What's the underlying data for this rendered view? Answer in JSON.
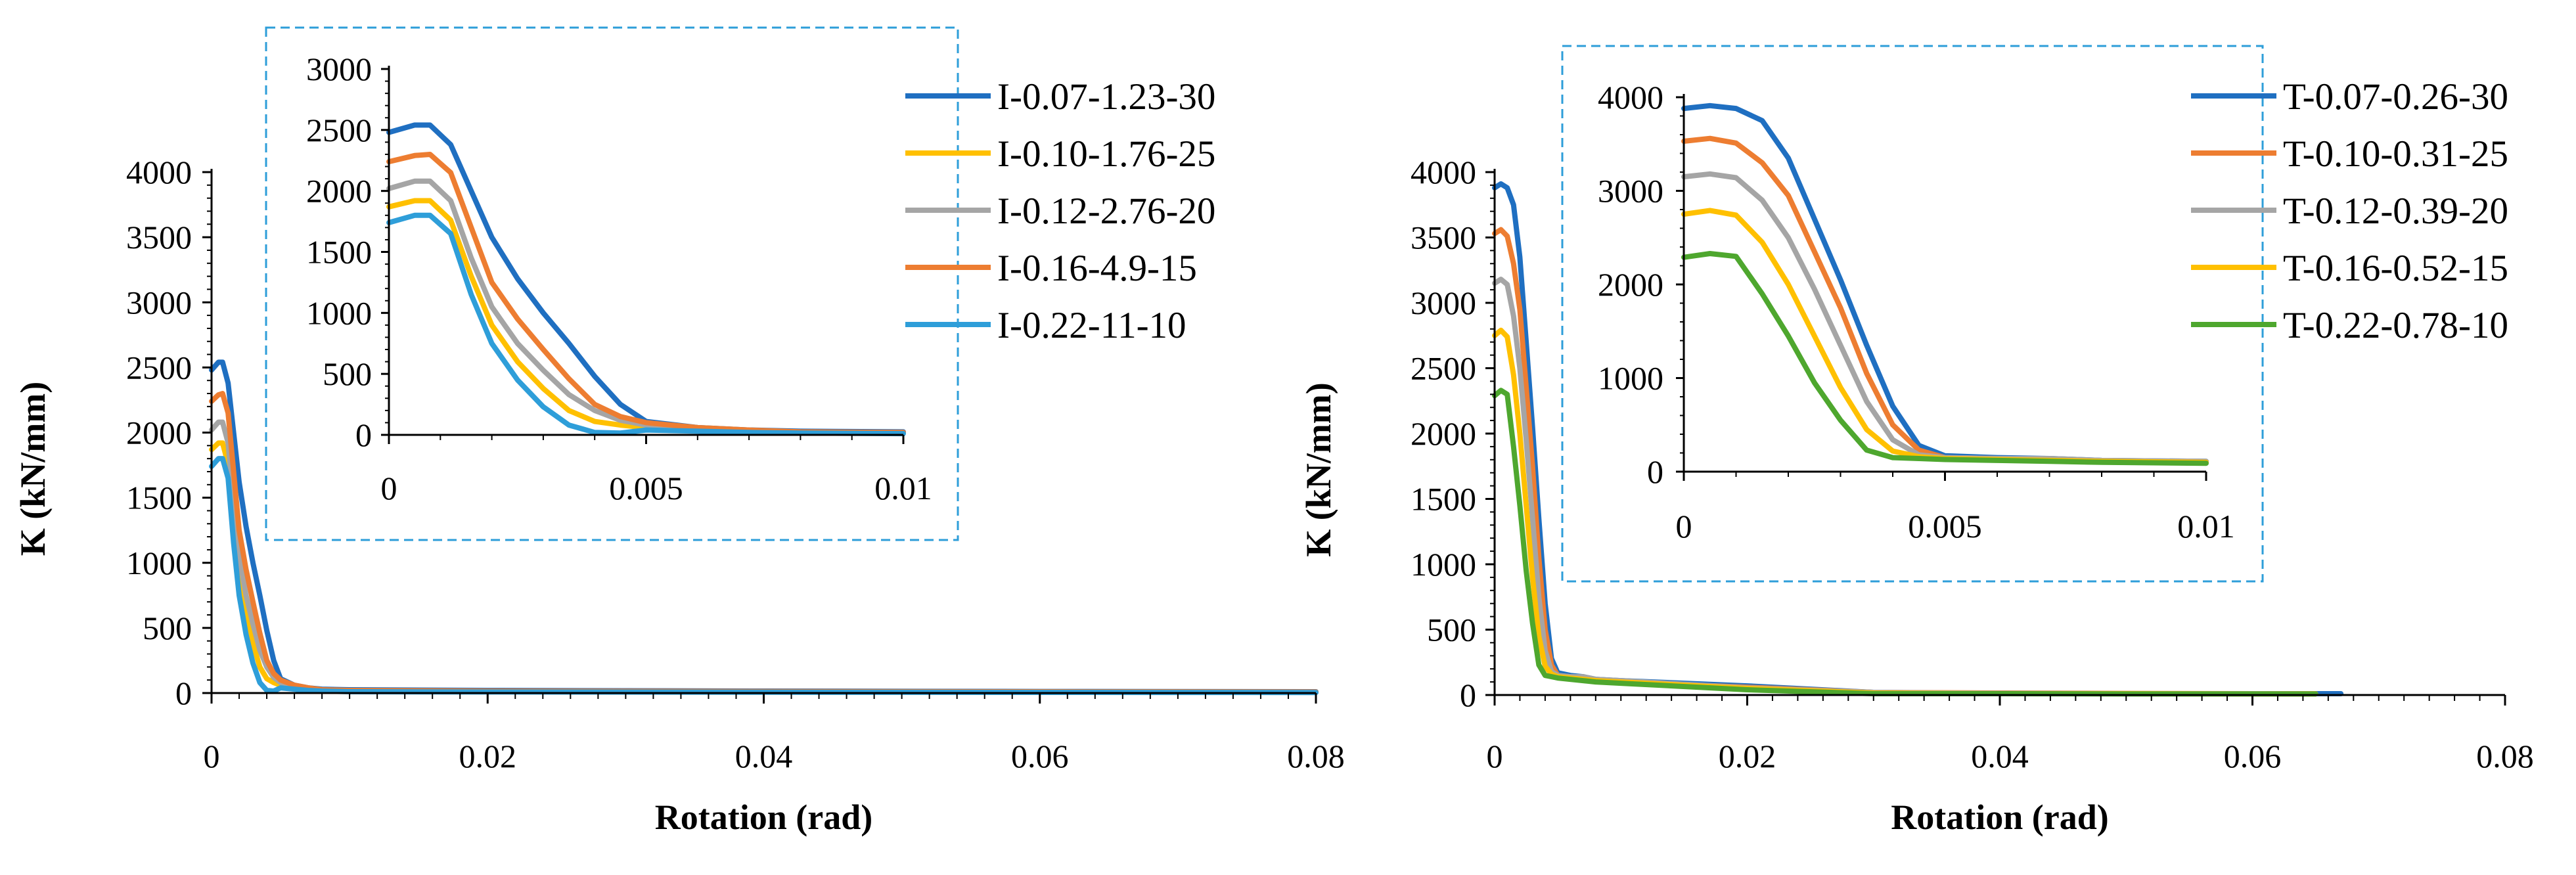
{
  "chart_data": [
    {
      "type": "line",
      "panel": "left",
      "title": "",
      "xlabel": "Rotation (rad)",
      "ylabel": "K (kN/mm)",
      "xlim": [
        0,
        0.08
      ],
      "ylim": [
        0,
        4000
      ],
      "xticks": [
        0,
        0.02,
        0.04,
        0.06,
        0.08
      ],
      "xtick_labels": [
        "0",
        "0.02",
        "0.04",
        "0.06",
        "0.08"
      ],
      "yticks": [
        0,
        500,
        1000,
        1500,
        2000,
        2500,
        3000,
        3500,
        4000
      ],
      "ytick_labels": [
        "0",
        "500",
        "1000",
        "1500",
        "2000",
        "2500",
        "3000",
        "3500",
        "4000"
      ],
      "legend_position": "top-right",
      "series": [
        {
          "name": "I-0.07-1.23-30",
          "color": "#1f6fc1",
          "x": [
            0,
            0.0005,
            0.0008,
            0.0012,
            0.0016,
            0.002,
            0.0025,
            0.003,
            0.0035,
            0.004,
            0.0045,
            0.005,
            0.006,
            0.007,
            0.008,
            0.01,
            0.02,
            0.04,
            0.06,
            0.08
          ],
          "y": [
            2480,
            2540,
            2540,
            2380,
            2000,
            1620,
            1280,
            1000,
            750,
            480,
            250,
            110,
            60,
            40,
            30,
            25,
            20,
            15,
            12,
            10
          ]
        },
        {
          "name": "I-0.10-1.76-25",
          "color": "#ffc000",
          "x": [
            0,
            0.0005,
            0.0008,
            0.0012,
            0.0016,
            0.002,
            0.0025,
            0.003,
            0.0035,
            0.004,
            0.0045,
            0.005,
            0.006,
            0.007,
            0.008,
            0.01,
            0.02,
            0.04,
            0.06,
            0.08
          ],
          "y": [
            1870,
            1920,
            1920,
            1760,
            1300,
            900,
            600,
            380,
            200,
            110,
            80,
            60,
            40,
            25,
            20,
            15,
            12,
            10,
            8,
            5
          ]
        },
        {
          "name": "I-0.12-2.76-20",
          "color": "#a5a5a5",
          "x": [
            0,
            0.0005,
            0.0008,
            0.0012,
            0.0016,
            0.002,
            0.0025,
            0.003,
            0.0035,
            0.004,
            0.0045,
            0.005,
            0.006,
            0.007,
            0.008,
            0.01,
            0.02,
            0.04,
            0.06,
            0.08
          ],
          "y": [
            2020,
            2080,
            2080,
            1920,
            1450,
            1050,
            750,
            530,
            330,
            200,
            120,
            80,
            50,
            30,
            20,
            15,
            12,
            10,
            8,
            5
          ]
        },
        {
          "name": "I-0.16-4.9-15",
          "color": "#ed7d31",
          "x": [
            0,
            0.0005,
            0.0008,
            0.0012,
            0.0016,
            0.002,
            0.0025,
            0.003,
            0.0035,
            0.004,
            0.0045,
            0.005,
            0.006,
            0.007,
            0.008,
            0.01,
            0.02,
            0.04,
            0.06,
            0.08
          ],
          "y": [
            2240,
            2290,
            2300,
            2150,
            1700,
            1250,
            950,
            700,
            460,
            250,
            150,
            100,
            60,
            40,
            25,
            20,
            15,
            12,
            10,
            8
          ]
        },
        {
          "name": "I-0.22-11-10",
          "color": "#2e9ed9",
          "x": [
            0,
            0.0005,
            0.0008,
            0.0012,
            0.0016,
            0.002,
            0.0025,
            0.003,
            0.0035,
            0.004,
            0.0045,
            0.005,
            0.006,
            0.007,
            0.008,
            0.01,
            0.02,
            0.04,
            0.06,
            0.08
          ],
          "y": [
            1740,
            1800,
            1800,
            1650,
            1150,
            750,
            450,
            230,
            80,
            20,
            15,
            40,
            30,
            20,
            15,
            10,
            8,
            6,
            5,
            4
          ]
        }
      ],
      "inset": {
        "xlim": [
          0,
          0.01
        ],
        "ylim": [
          0,
          3000
        ],
        "xticks": [
          0,
          0.005,
          0.01
        ],
        "xtick_labels": [
          "0",
          "0.005",
          "0.01"
        ],
        "yticks": [
          0,
          500,
          1000,
          1500,
          2000,
          2500,
          3000
        ],
        "ytick_labels": [
          "0",
          "500",
          "1000",
          "1500",
          "2000",
          "2500",
          "3000"
        ]
      }
    },
    {
      "type": "line",
      "panel": "right",
      "title": "",
      "xlabel": "Rotation (rad)",
      "ylabel": "K (kN/mm)",
      "xlim": [
        0,
        0.08
      ],
      "ylim": [
        0,
        4000
      ],
      "xticks": [
        0,
        0.02,
        0.04,
        0.06,
        0.08
      ],
      "xtick_labels": [
        "0",
        "0.02",
        "0.04",
        "0.06",
        "0.08"
      ],
      "yticks": [
        0,
        500,
        1000,
        1500,
        2000,
        2500,
        3000,
        3500,
        4000
      ],
      "ytick_labels": [
        "0",
        "500",
        "1000",
        "1500",
        "2000",
        "2500",
        "3000",
        "3500",
        "4000"
      ],
      "legend_position": "top-right",
      "series": [
        {
          "name": "T-0.07-0.26-30",
          "color": "#1f6fc1",
          "x": [
            0,
            0.0005,
            0.001,
            0.0015,
            0.002,
            0.0025,
            0.003,
            0.0035,
            0.004,
            0.0045,
            0.005,
            0.006,
            0.007,
            0.008,
            0.01,
            0.02,
            0.03,
            0.04,
            0.05,
            0.06,
            0.067
          ],
          "y": [
            3880,
            3910,
            3880,
            3750,
            3350,
            2700,
            2050,
            1350,
            700,
            280,
            170,
            150,
            140,
            120,
            110,
            70,
            20,
            10,
            10,
            10,
            10
          ]
        },
        {
          "name": "T-0.10-0.31-25",
          "color": "#ed7d31",
          "x": [
            0,
            0.0005,
            0.001,
            0.0015,
            0.002,
            0.0025,
            0.003,
            0.0035,
            0.004,
            0.0045,
            0.005,
            0.006,
            0.007,
            0.008,
            0.01,
            0.02,
            0.03,
            0.04,
            0.05,
            0.06,
            0.065
          ],
          "y": [
            3530,
            3560,
            3510,
            3300,
            2950,
            2350,
            1750,
            1050,
            500,
            230,
            150,
            140,
            130,
            115,
            100,
            60,
            20,
            15,
            12,
            10,
            10
          ]
        },
        {
          "name": "T-0.12-0.39-20",
          "color": "#a5a5a5",
          "x": [
            0,
            0.0005,
            0.001,
            0.0015,
            0.002,
            0.0025,
            0.003,
            0.0035,
            0.004,
            0.0045,
            0.005,
            0.006,
            0.007,
            0.008,
            0.01,
            0.02,
            0.03,
            0.04,
            0.05,
            0.06,
            0.065
          ],
          "y": [
            3150,
            3180,
            3140,
            2900,
            2500,
            1950,
            1350,
            750,
            340,
            180,
            150,
            140,
            140,
            120,
            110,
            55,
            20,
            12,
            10,
            10,
            8
          ]
        },
        {
          "name": "T-0.16-0.52-15",
          "color": "#ffc000",
          "x": [
            0,
            0.0005,
            0.001,
            0.0015,
            0.002,
            0.0025,
            0.003,
            0.0035,
            0.004,
            0.0045,
            0.005,
            0.006,
            0.007,
            0.008,
            0.01,
            0.02,
            0.03,
            0.04,
            0.05,
            0.06,
            0.065
          ],
          "y": [
            2750,
            2790,
            2740,
            2450,
            2000,
            1450,
            900,
            450,
            220,
            160,
            140,
            130,
            120,
            110,
            100,
            50,
            15,
            10,
            10,
            8,
            8
          ]
        },
        {
          "name": "T-0.22-0.78-10",
          "color": "#4ea72e",
          "x": [
            0,
            0.0005,
            0.001,
            0.0015,
            0.002,
            0.0025,
            0.003,
            0.0035,
            0.004,
            0.0045,
            0.005,
            0.006,
            0.007,
            0.008,
            0.01,
            0.02,
            0.03,
            0.04,
            0.05,
            0.06,
            0.065
          ],
          "y": [
            2290,
            2330,
            2300,
            1900,
            1450,
            950,
            550,
            230,
            150,
            140,
            130,
            120,
            110,
            100,
            90,
            40,
            10,
            10,
            8,
            8,
            8
          ]
        }
      ],
      "inset": {
        "xlim": [
          0,
          0.01
        ],
        "ylim": [
          0,
          4000
        ],
        "xticks": [
          0,
          0.005,
          0.01
        ],
        "xtick_labels": [
          "0",
          "0.005",
          "0.01"
        ],
        "yticks": [
          0,
          1000,
          2000,
          3000,
          4000
        ],
        "ytick_labels": [
          "0",
          "1000",
          "2000",
          "3000",
          "4000"
        ]
      }
    }
  ]
}
